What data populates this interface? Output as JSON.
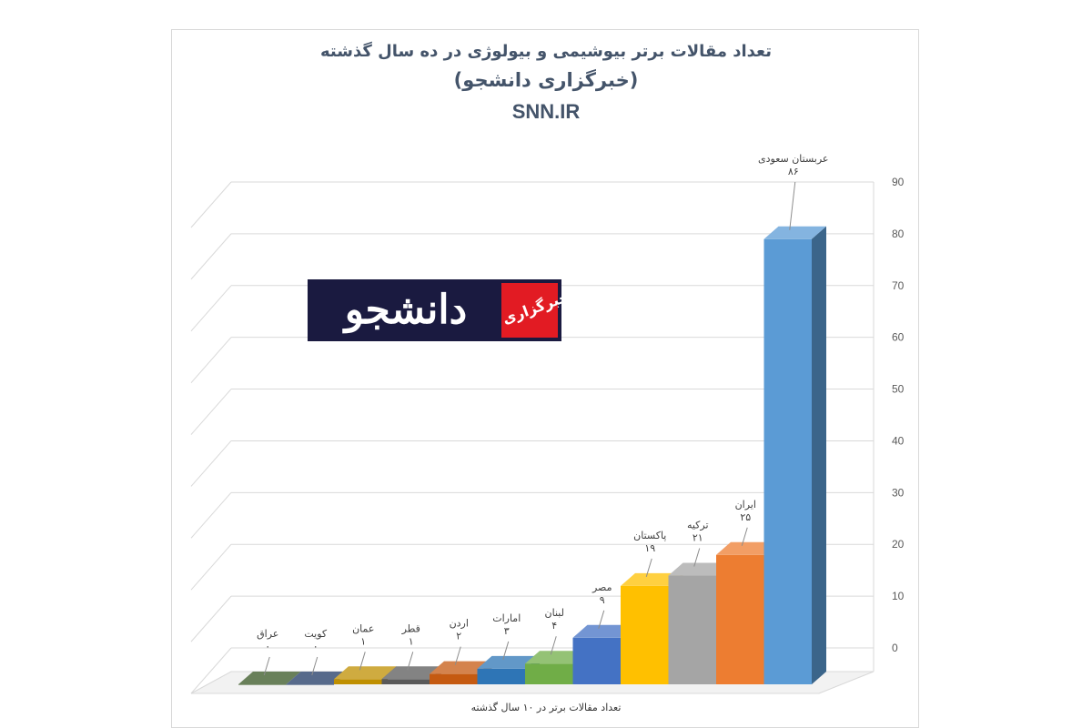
{
  "title": {
    "line1": "تعداد مقالات برتر بیوشیمی و بیولوژی در ده سال گذشته",
    "line2": "(خبرگزاری دانشجو)",
    "line3": "SNN.IR"
  },
  "logo": {
    "main_text": "دانشجو",
    "badge_text": "خبرگزاری"
  },
  "chart_data": {
    "type": "bar",
    "categories": [
      "عراق",
      "کویت",
      "عمان",
      "قطر",
      "اردن",
      "امارات",
      "لبنان",
      "مصر",
      "پاکستان",
      "ترکیه",
      "ایران",
      "عربستان سعودی"
    ],
    "values": [
      0,
      0,
      1,
      1,
      2,
      3,
      4,
      9,
      19,
      21,
      25,
      86
    ],
    "value_labels": [
      "۰",
      "۰",
      "۱",
      "۱",
      "۲",
      "۳",
      "۴",
      "۹",
      "۱۹",
      "۲۱",
      "۲۵",
      "۸۶"
    ],
    "colors": [
      "#375623",
      "#1f3864",
      "#bf8f00",
      "#595959",
      "#c55a11",
      "#2e75b6",
      "#70ad47",
      "#4472c4",
      "#ffc000",
      "#a5a5a5",
      "#ed7d31",
      "#5b9bd5"
    ],
    "ylim": [
      0,
      90
    ],
    "yticks": [
      "0",
      "10",
      "20",
      "30",
      "40",
      "50",
      "60",
      "70",
      "80",
      "90"
    ],
    "xlabel": "تعداد مقالات برتر در ۱۰ سال گذشته",
    "style": "3d-column",
    "grid": true
  }
}
